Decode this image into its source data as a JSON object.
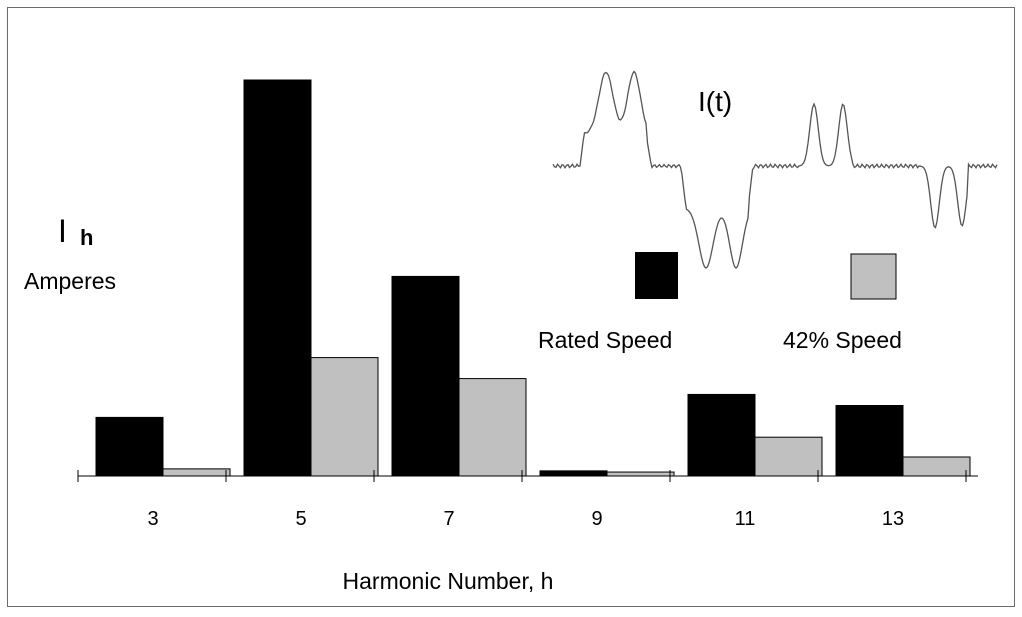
{
  "chart_data": {
    "type": "bar",
    "title": "",
    "xlabel": "Harmonic Number, h",
    "ylabel_main": "I",
    "ylabel_sub": "h",
    "ylabel_unit": "Amperes",
    "categories": [
      "3",
      "5",
      "7",
      "9",
      "11",
      "13"
    ],
    "series": [
      {
        "name": "Rated Speed",
        "color": "#000000",
        "values": [
          0.148,
          1.0,
          0.504,
          0.013,
          0.206,
          0.178
        ]
      },
      {
        "name": "42% Speed",
        "color": "#c0c0c0",
        "values": [
          0.018,
          0.299,
          0.246,
          0.01,
          0.098,
          0.048
        ]
      }
    ],
    "ylim": [
      0,
      1
    ],
    "value_scale": "normalized to largest bar (no y-axis values shown)",
    "grid": false,
    "legend_position": "right, below inset",
    "inset_label": "I(t)",
    "inset_description": "current waveform I(t)"
  }
}
